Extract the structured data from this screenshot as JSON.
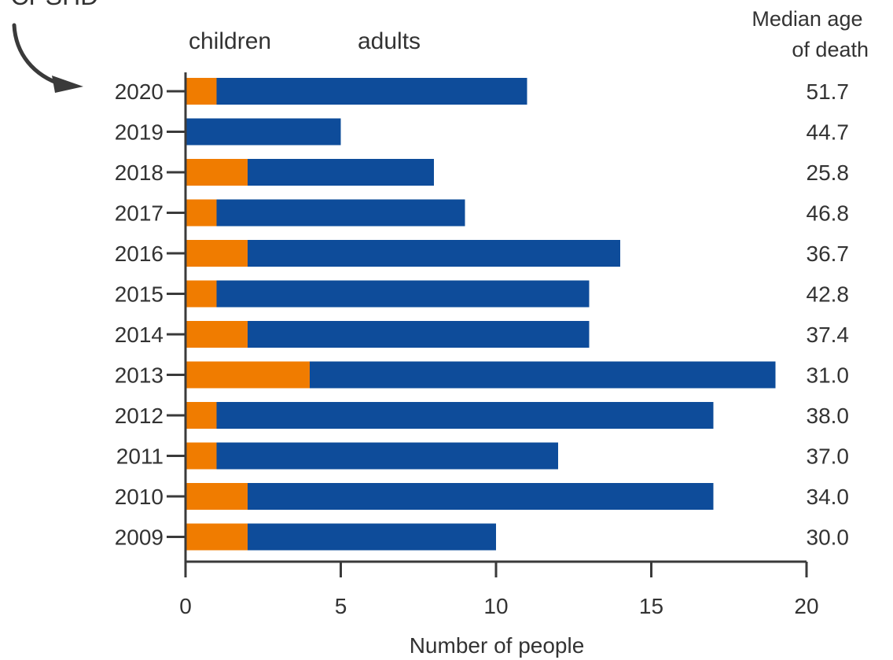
{
  "chart_data": {
    "type": "bar",
    "orientation": "horizontal",
    "stacked": true,
    "title": "",
    "xlabel": "Number of people",
    "ylabel": "",
    "xlim": [
      0,
      20
    ],
    "x_ticks": [
      "0",
      "5",
      "10",
      "15",
      "20"
    ],
    "categories": [
      "2020",
      "2019",
      "2018",
      "2017",
      "2016",
      "2015",
      "2014",
      "2013",
      "2012",
      "2011",
      "2010",
      "2009"
    ],
    "series": [
      {
        "name": "children",
        "color": "#f07c00",
        "values": [
          1,
          0,
          2,
          1,
          2,
          1,
          2,
          4,
          1,
          1,
          2,
          2
        ]
      },
      {
        "name": "adults",
        "color": "#0e4c9a",
        "values": [
          10,
          5,
          6,
          8,
          12,
          12,
          11,
          15,
          16,
          11,
          15,
          8
        ]
      }
    ],
    "right_column_header": [
      "Median age",
      "of death"
    ],
    "right_column_values": [
      "51.7",
      "44.7",
      "25.8",
      "46.8",
      "36.7",
      "42.8",
      "37.4",
      "31.0",
      "38.0",
      "37.0",
      "34.0",
      "30.0"
    ],
    "annotation_text": "PCPSHD",
    "legend_position": "top",
    "grid": false
  }
}
